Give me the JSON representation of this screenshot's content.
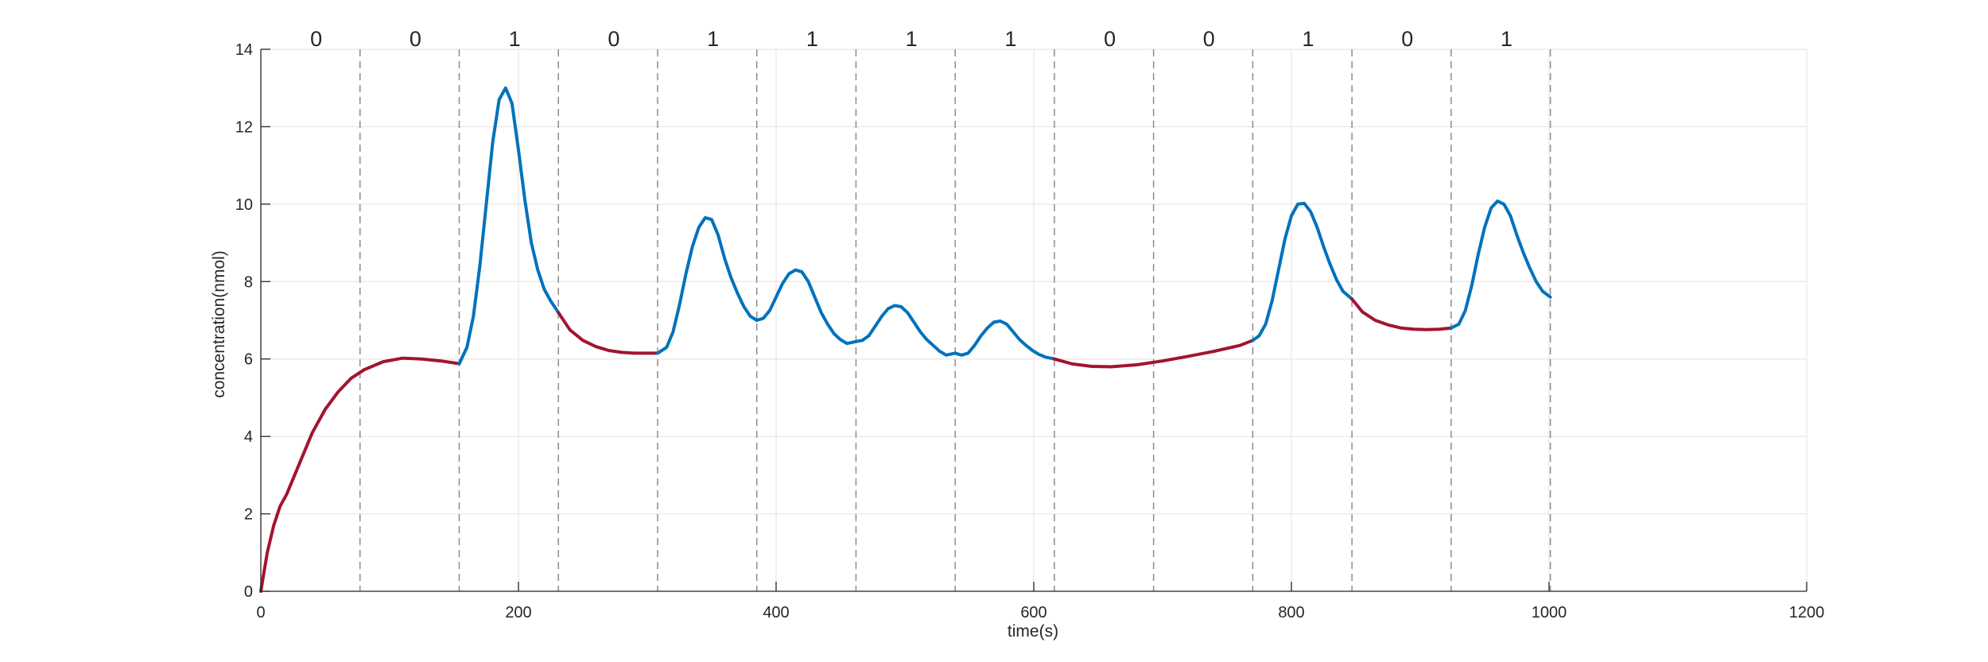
{
  "chart_data": {
    "type": "line",
    "title": "",
    "xlabel": "time(s)",
    "ylabel": "concentration(nmol)",
    "xlim": [
      0,
      1200
    ],
    "ylim": [
      0,
      14
    ],
    "xticks": [
      0,
      200,
      400,
      600,
      800,
      1000,
      1200
    ],
    "yticks": [
      0,
      2,
      4,
      6,
      8,
      10,
      12,
      14
    ],
    "grid": true,
    "legend": "none",
    "boundaries": [
      77,
      154,
      231,
      308,
      385,
      462,
      539,
      616,
      693,
      770,
      847,
      924,
      1001
    ],
    "bit_labels": [
      "0",
      "0",
      "1",
      "0",
      "1",
      "1",
      "1",
      "1",
      "0",
      "0",
      "1",
      "0",
      "1"
    ],
    "bit_positions": [
      43,
      120,
      197,
      274,
      351,
      428,
      505,
      582,
      659,
      736,
      813,
      890,
      967
    ],
    "colors": {
      "bit0": "#a2142f",
      "bit1": "#0072bd",
      "grid": "#e6e6e6",
      "boundary": "#8c8c8c"
    },
    "series": [
      {
        "bit": "0",
        "color": "#a2142f",
        "x": [
          0,
          5,
          10,
          15,
          20,
          30,
          40,
          50,
          60,
          70,
          80,
          95,
          110,
          125,
          140,
          154
        ],
        "y": [
          0,
          1.0,
          1.7,
          2.2,
          2.5,
          3.3,
          4.1,
          4.7,
          5.15,
          5.5,
          5.72,
          5.93,
          6.02,
          6.0,
          5.95,
          5.88
        ]
      },
      {
        "bit": "1",
        "color": "#0072bd",
        "x": [
          154,
          160,
          165,
          170,
          175,
          180,
          185,
          190,
          195,
          200,
          205,
          210,
          215,
          220,
          225,
          231
        ],
        "y": [
          5.88,
          6.3,
          7.1,
          8.4,
          10.0,
          11.6,
          12.7,
          13.0,
          12.6,
          11.4,
          10.1,
          9.0,
          8.3,
          7.8,
          7.5,
          7.2
        ]
      },
      {
        "bit": "0",
        "color": "#a2142f",
        "x": [
          231,
          240,
          250,
          260,
          270,
          280,
          290,
          300,
          308
        ],
        "y": [
          7.2,
          6.75,
          6.48,
          6.32,
          6.22,
          6.17,
          6.15,
          6.15,
          6.15
        ]
      },
      {
        "bit": "1",
        "color": "#0072bd",
        "x": [
          308,
          315,
          320,
          325,
          330,
          335,
          340,
          345,
          350,
          355,
          360,
          365,
          370,
          375,
          380,
          385
        ],
        "y": [
          6.15,
          6.3,
          6.7,
          7.4,
          8.2,
          8.9,
          9.4,
          9.65,
          9.6,
          9.2,
          8.6,
          8.1,
          7.7,
          7.35,
          7.1,
          7.0
        ]
      },
      {
        "bit": "1",
        "color": "#0072bd",
        "x": [
          385,
          390,
          395,
          400,
          405,
          410,
          415,
          420,
          425,
          430,
          435,
          440,
          445,
          450,
          455,
          462
        ],
        "y": [
          7.0,
          7.05,
          7.25,
          7.6,
          7.95,
          8.2,
          8.3,
          8.25,
          8.0,
          7.6,
          7.2,
          6.9,
          6.65,
          6.5,
          6.4,
          6.45
        ]
      },
      {
        "bit": "1",
        "color": "#0072bd",
        "x": [
          462,
          467,
          472,
          477,
          482,
          487,
          492,
          497,
          502,
          507,
          512,
          517,
          522,
          527,
          532,
          539
        ],
        "y": [
          6.45,
          6.48,
          6.6,
          6.85,
          7.1,
          7.3,
          7.38,
          7.35,
          7.2,
          6.95,
          6.7,
          6.5,
          6.35,
          6.2,
          6.1,
          6.15
        ]
      },
      {
        "bit": "1",
        "color": "#0072bd",
        "x": [
          539,
          544,
          549,
          554,
          559,
          564,
          569,
          574,
          579,
          584,
          589,
          594,
          599,
          604,
          609,
          616
        ],
        "y": [
          6.15,
          6.1,
          6.15,
          6.35,
          6.6,
          6.8,
          6.95,
          6.98,
          6.9,
          6.7,
          6.5,
          6.35,
          6.22,
          6.12,
          6.05,
          6.0
        ]
      },
      {
        "bit": "0",
        "color": "#a2142f",
        "x": [
          616,
          630,
          645,
          660,
          680,
          700,
          720,
          740,
          760,
          770
        ],
        "y": [
          6.0,
          5.87,
          5.81,
          5.8,
          5.85,
          5.95,
          6.07,
          6.2,
          6.35,
          6.48
        ]
      },
      {
        "bit": "1",
        "color": "#0072bd",
        "x": [
          770,
          775,
          780,
          785,
          790,
          795,
          800,
          805,
          810,
          815,
          820,
          825,
          830,
          835,
          840,
          847
        ],
        "y": [
          6.48,
          6.6,
          6.9,
          7.5,
          8.3,
          9.1,
          9.7,
          10.0,
          10.02,
          9.8,
          9.4,
          8.9,
          8.45,
          8.05,
          7.75,
          7.55
        ]
      },
      {
        "bit": "0",
        "color": "#a2142f",
        "x": [
          847,
          855,
          865,
          875,
          885,
          895,
          905,
          915,
          924
        ],
        "y": [
          7.55,
          7.22,
          7.0,
          6.88,
          6.8,
          6.77,
          6.76,
          6.77,
          6.8
        ]
      },
      {
        "bit": "1",
        "color": "#0072bd",
        "x": [
          924,
          930,
          935,
          940,
          945,
          950,
          955,
          960,
          965,
          970,
          975,
          980,
          985,
          990,
          995,
          1001
        ],
        "y": [
          6.8,
          6.9,
          7.25,
          7.9,
          8.7,
          9.4,
          9.9,
          10.08,
          10.0,
          9.7,
          9.2,
          8.75,
          8.35,
          8.0,
          7.75,
          7.6
        ]
      }
    ]
  }
}
